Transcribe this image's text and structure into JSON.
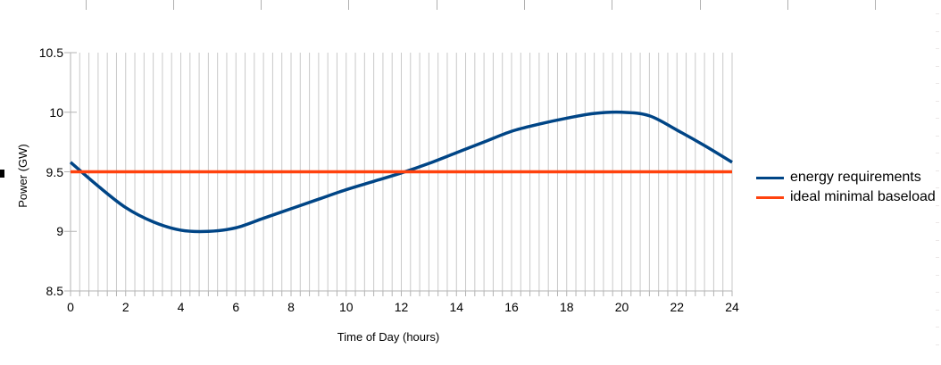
{
  "chart_data": {
    "type": "line",
    "title": "",
    "xlabel": "Time of Day (hours)",
    "ylabel": "Power (GW)",
    "xlim": [
      0,
      24
    ],
    "ylim": [
      8.5,
      10.5
    ],
    "x_major_ticks": [
      0,
      2,
      4,
      6,
      8,
      10,
      12,
      14,
      16,
      18,
      20,
      22,
      24
    ],
    "x_minor_step_hours": 0.3333333,
    "y_ticks": [
      8.5,
      9,
      9.5,
      10,
      10.5
    ],
    "y_tick_labels": [
      "8.5",
      "9",
      "9.5",
      "10",
      "10.5"
    ],
    "grid": "vertical minor gridlines only, no horizontal gridlines",
    "legend_position": "right",
    "series": [
      {
        "name": "energy requirements",
        "color": "#004586",
        "smooth": true,
        "x": [
          0,
          1,
          2,
          3,
          4,
          5,
          6,
          7,
          8,
          9,
          10,
          11,
          12,
          13,
          14,
          15,
          16,
          17,
          18,
          19,
          20,
          21,
          22,
          23,
          24
        ],
        "values": [
          9.58,
          9.38,
          9.2,
          9.08,
          9.01,
          9.0,
          9.03,
          9.11,
          9.19,
          9.27,
          9.35,
          9.42,
          9.49,
          9.57,
          9.66,
          9.75,
          9.84,
          9.9,
          9.95,
          9.99,
          10.0,
          9.97,
          9.85,
          9.72,
          9.58
        ]
      },
      {
        "name": "ideal minimal baseload",
        "color": "#FF420E",
        "smooth": false,
        "x": [
          0,
          24
        ],
        "values": [
          9.5,
          9.5
        ]
      }
    ],
    "colors": {
      "gridline": "#c9c9c9",
      "axis": "#b3b3b3",
      "text": "#000000",
      "background": "#ffffff"
    }
  }
}
